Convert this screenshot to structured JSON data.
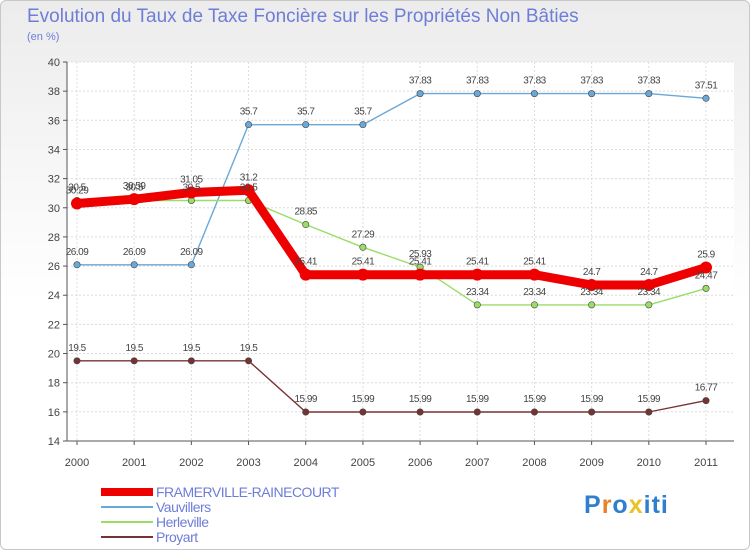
{
  "chart_data": {
    "type": "line",
    "title": "Evolution du Taux de Taxe Foncière sur les Propriétés Non Bâties",
    "ylabel": "(en %)",
    "xlabel": "",
    "x": [
      "2000",
      "2001",
      "2002",
      "2003",
      "2004",
      "2005",
      "2006",
      "2007",
      "2008",
      "2009",
      "2010",
      "2011"
    ],
    "ylim": [
      14,
      40
    ],
    "yticks": [
      14,
      16,
      18,
      20,
      22,
      24,
      26,
      28,
      30,
      32,
      34,
      36,
      38,
      40
    ],
    "grid": true,
    "series": [
      {
        "name": "FRAMERVILLE-RAINECOURT",
        "color": "#ee0000",
        "highlight": true,
        "values": [
          30.29,
          30.59,
          31.05,
          31.2,
          25.41,
          25.41,
          25.41,
          25.41,
          25.41,
          24.7,
          24.7,
          25.9
        ],
        "labels": [
          "30.29",
          "30.59",
          "31.05",
          "31.2",
          "25.41",
          "25.41",
          "25.41",
          "25.41",
          "25.41",
          "24.7",
          "24.7",
          "25.9"
        ]
      },
      {
        "name": "Vauvillers",
        "color": "#6aa8d8",
        "values": [
          26.09,
          26.09,
          26.09,
          35.7,
          35.7,
          35.7,
          37.83,
          37.83,
          37.83,
          37.83,
          37.83,
          37.51
        ],
        "labels": [
          "26.09",
          "26.09",
          "26.09",
          "35.7",
          "35.7",
          "35.7",
          "37.83",
          "37.83",
          "37.83",
          "37.83",
          "37.83",
          "37.51"
        ]
      },
      {
        "name": "Herleville",
        "color": "#99dd66",
        "values": [
          30.5,
          30.5,
          30.5,
          30.5,
          28.85,
          27.29,
          25.93,
          23.34,
          23.34,
          23.34,
          23.34,
          24.47
        ],
        "labels": [
          "30.5",
          "30.5",
          "30.5",
          "30.5",
          "28.85",
          "27.29",
          "25.93",
          "23.34",
          "23.34",
          "23.34",
          "23.34",
          "24.47"
        ]
      },
      {
        "name": "Proyart",
        "color": "#773333",
        "values": [
          19.5,
          19.5,
          19.5,
          19.5,
          15.99,
          15.99,
          15.99,
          15.99,
          15.99,
          15.99,
          15.99,
          16.77
        ],
        "labels": [
          "19.5",
          "19.5",
          "19.5",
          "19.5",
          "15.99",
          "15.99",
          "15.99",
          "15.99",
          "15.99",
          "15.99",
          "15.99",
          "16.77"
        ]
      }
    ]
  },
  "legend": {
    "items": [
      {
        "label": "FRAMERVILLE-RAINECOURT",
        "color": "#ee0000"
      },
      {
        "label": "Vauvillers",
        "color": "#6aa8d8"
      },
      {
        "label": "Herleville",
        "color": "#99dd66"
      },
      {
        "label": "Proyart",
        "color": "#773333"
      }
    ]
  },
  "brand": {
    "letters": [
      "P",
      "r",
      "o",
      "x",
      "i",
      "t",
      "i"
    ],
    "colors": [
      "#2f7fcf",
      "#e8822a",
      "#2f7fcf",
      "#e8c22a",
      "#2f7fcf",
      "#2f7fcf",
      "#2f7fcf"
    ]
  }
}
